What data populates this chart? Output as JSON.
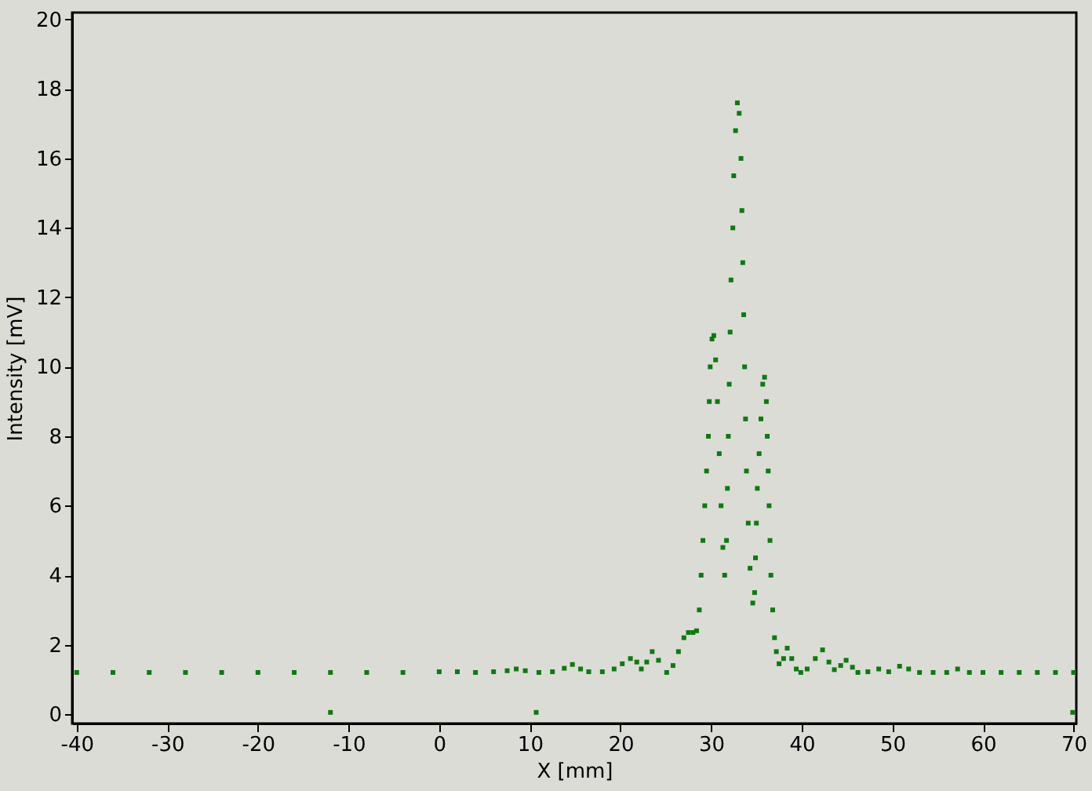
{
  "chart_data": {
    "type": "scatter",
    "xlabel": "X [mm]",
    "ylabel": "Intensity [mV]",
    "marker": "square",
    "grid": false,
    "xlim": [
      -40.5,
      70.3
    ],
    "ylim": [
      -0.27,
      20.2
    ],
    "xticks": [
      -40,
      -30,
      -20,
      -10,
      0,
      10,
      20,
      30,
      40,
      50,
      60,
      70
    ],
    "yticks": [
      0,
      2,
      4,
      6,
      8,
      10,
      12,
      14,
      16,
      18,
      20
    ],
    "series": [
      {
        "color": "#117811",
        "x": [
          -40,
          -36,
          -32,
          -28,
          -24,
          -20,
          -16,
          -12,
          -8,
          -4,
          0,
          2,
          4,
          6,
          7.5,
          8.5,
          9.5,
          11,
          12.5,
          13.8,
          14.7,
          15.6,
          16.5,
          18,
          19.3,
          20.2,
          21.1,
          21.8,
          22.3,
          22.9,
          23.5,
          24.2,
          25.1,
          25.8,
          26.4,
          27.0,
          27.5,
          28.0,
          28.4,
          28.7,
          28.9,
          29.1,
          29.3,
          29.5,
          29.7,
          29.8,
          29.9,
          30.1,
          30.3,
          30.5,
          30.7,
          30.9,
          31.1,
          31.3,
          31.5,
          31.7,
          31.8,
          31.9,
          32.0,
          32.1,
          32.2,
          32.4,
          32.5,
          32.7,
          32.9,
          33.1,
          33.3,
          33.4,
          33.5,
          33.6,
          33.7,
          33.8,
          33.9,
          34.1,
          34.3,
          34.6,
          34.8,
          34.9,
          35.0,
          35.1,
          35.3,
          35.5,
          35.7,
          35.9,
          36.1,
          36.2,
          36.3,
          36.4,
          36.5,
          36.6,
          36.8,
          37.0,
          37.2,
          37.5,
          38.0,
          38.4,
          38.9,
          39.4,
          39.9,
          40.6,
          41.5,
          42.3,
          43.0,
          43.6,
          44.3,
          44.9,
          45.6,
          46.2,
          47.3,
          48.5,
          49.6,
          50.8,
          51.8,
          53,
          54.5,
          56,
          57.2,
          58.5,
          60,
          62,
          64,
          66,
          68,
          70,
          -12,
          10.7,
          69.9
        ],
        "values": [
          1.2,
          1.2,
          1.2,
          1.2,
          1.2,
          1.2,
          1.2,
          1.2,
          1.2,
          1.2,
          1.22,
          1.22,
          1.2,
          1.22,
          1.25,
          1.3,
          1.25,
          1.2,
          1.22,
          1.32,
          1.43,
          1.3,
          1.22,
          1.22,
          1.3,
          1.45,
          1.6,
          1.5,
          1.3,
          1.5,
          1.8,
          1.55,
          1.2,
          1.4,
          1.8,
          2.2,
          2.35,
          2.35,
          2.4,
          3.0,
          4.0,
          5.0,
          6.0,
          7.0,
          8.0,
          9.0,
          10.0,
          10.8,
          10.9,
          10.2,
          9.0,
          7.5,
          6.0,
          4.8,
          4.0,
          5.0,
          6.5,
          8.0,
          9.5,
          11.0,
          12.5,
          14.0,
          15.5,
          16.8,
          17.6,
          17.3,
          16.0,
          14.5,
          13.0,
          11.5,
          10.0,
          8.5,
          7.0,
          5.5,
          4.2,
          3.2,
          3.5,
          4.5,
          5.5,
          6.5,
          7.5,
          8.5,
          9.5,
          9.7,
          9.0,
          8.0,
          7.0,
          6.0,
          5.0,
          4.0,
          3.0,
          2.2,
          1.8,
          1.45,
          1.6,
          1.9,
          1.6,
          1.3,
          1.2,
          1.3,
          1.6,
          1.85,
          1.5,
          1.28,
          1.4,
          1.55,
          1.35,
          1.2,
          1.22,
          1.3,
          1.22,
          1.38,
          1.3,
          1.2,
          1.2,
          1.2,
          1.3,
          1.2,
          1.2,
          1.2,
          1.2,
          1.2,
          1.2,
          1.2,
          0.05,
          0.05,
          0.05
        ]
      }
    ]
  }
}
